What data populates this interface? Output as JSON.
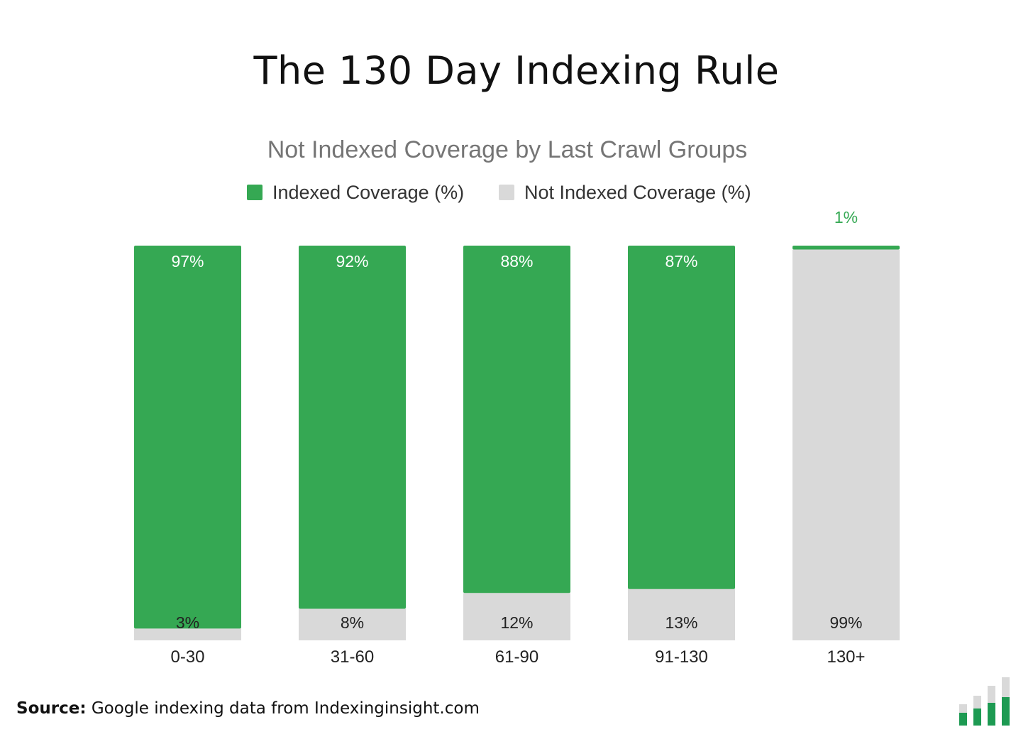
{
  "header": {
    "title": "The 130 Day Indexing Rule"
  },
  "source": {
    "label": "Source:",
    "text": "Google indexing data from Indexinginsight.com"
  },
  "logo": {
    "icon": "bar-chart-logo-icon",
    "colors": {
      "dark": "#1d9a52",
      "light": "#d9d9d9"
    }
  },
  "chart_data": {
    "type": "bar",
    "stacked": true,
    "subtitle": "Not Indexed Coverage by Last Crawl Groups",
    "categories": [
      "0-30",
      "31-60",
      "61-90",
      "91-130",
      "130+"
    ],
    "series": [
      {
        "name": "Indexed Coverage (%)",
        "color": "#35a853",
        "values": [
          97,
          92,
          88,
          87,
          1
        ],
        "labels": [
          "97%",
          "92%",
          "88%",
          "87%",
          "1%"
        ]
      },
      {
        "name": "Not Indexed Coverage (%)",
        "color": "#d9d9d9",
        "values": [
          3,
          8,
          12,
          13,
          99
        ],
        "labels": [
          "3%",
          "8%",
          "12%",
          "13%",
          "99%"
        ]
      }
    ],
    "ylim": [
      0,
      100
    ],
    "grid": false,
    "legend": "top-center"
  }
}
